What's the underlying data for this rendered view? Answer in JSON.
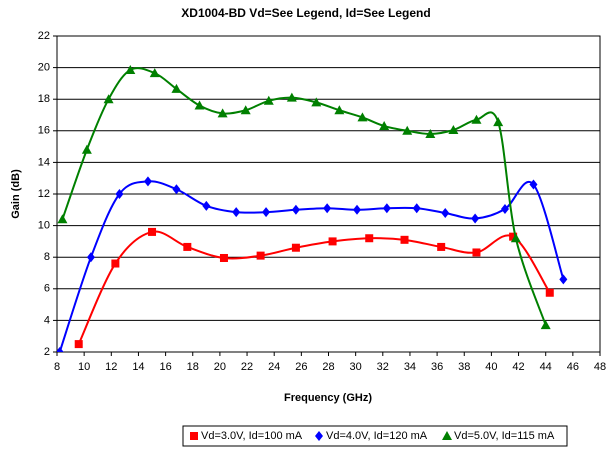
{
  "chart_data": {
    "type": "line",
    "title": "XD1004-BD Vd=See Legend, Id=See Legend",
    "xlabel": "Frequency (GHz)",
    "ylabel": "Gain (dB)",
    "xlim": [
      8,
      48
    ],
    "ylim": [
      2,
      22
    ],
    "xticks": [
      8,
      10,
      12,
      14,
      16,
      18,
      20,
      22,
      24,
      26,
      28,
      30,
      32,
      34,
      36,
      38,
      40,
      42,
      44,
      46,
      48
    ],
    "yticks": [
      2,
      4,
      6,
      8,
      10,
      12,
      14,
      16,
      18,
      20,
      22
    ],
    "grid": true,
    "legend": "bottom",
    "series": [
      {
        "name": "Vd=3.0V, Id=100 mA",
        "color": "#ff0000",
        "marker": "square",
        "x": [
          9.6,
          12.3,
          15.0,
          17.6,
          20.3,
          23.0,
          25.6,
          28.3,
          31.0,
          33.6,
          36.3,
          38.9,
          41.6,
          44.3
        ],
        "values": [
          2.5,
          7.6,
          9.6,
          8.65,
          7.95,
          8.1,
          8.6,
          9.0,
          9.2,
          9.1,
          8.65,
          8.3,
          9.3,
          5.75
        ]
      },
      {
        "name": "Vd=4.0V, Id=120 mA",
        "color": "#0000ff",
        "marker": "diamond",
        "x": [
          8.2,
          10.5,
          12.6,
          14.7,
          16.8,
          19.0,
          21.2,
          23.4,
          25.6,
          27.9,
          30.1,
          32.3,
          34.5,
          36.6,
          38.8,
          41.0,
          43.1,
          45.3
        ],
        "values": [
          2.0,
          8.0,
          12.0,
          12.8,
          12.3,
          11.25,
          10.85,
          10.85,
          11.0,
          11.1,
          11.0,
          11.1,
          11.1,
          10.8,
          10.45,
          11.05,
          12.6,
          6.6
        ]
      },
      {
        "name": "Vd=5.0V, Id=115 mA",
        "color": "#008000",
        "marker": "triangle",
        "x": [
          8.4,
          10.2,
          11.8,
          13.4,
          15.2,
          16.8,
          18.5,
          20.2,
          21.9,
          23.6,
          25.3,
          27.1,
          28.8,
          30.5,
          32.1,
          33.8,
          35.5,
          37.2,
          38.9,
          40.5,
          41.8,
          44.0
        ],
        "values": [
          10.4,
          14.8,
          18.0,
          19.85,
          19.65,
          18.65,
          17.6,
          17.1,
          17.3,
          17.9,
          18.1,
          17.8,
          17.3,
          16.85,
          16.3,
          16.0,
          15.8,
          16.05,
          16.7,
          16.55,
          9.2,
          3.7
        ]
      }
    ]
  }
}
